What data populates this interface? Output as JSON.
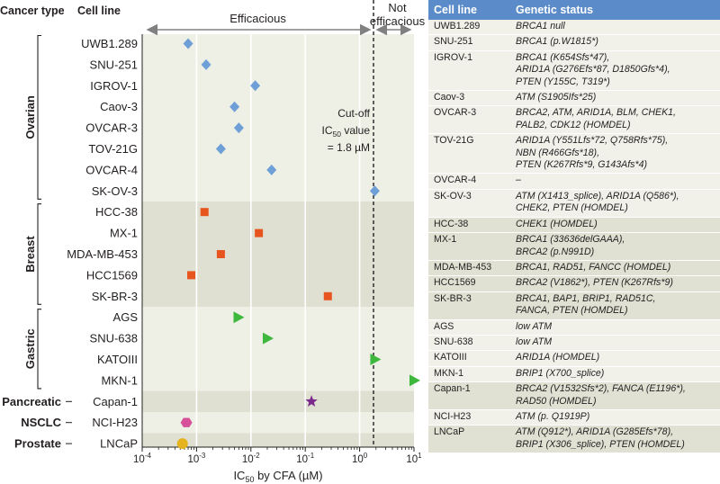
{
  "chart_data": {
    "type": "scatter",
    "x_scale": "log",
    "xlim": [
      0.0001,
      10
    ],
    "xlabel": "IC50 by CFA (µM)",
    "x_tick_labels": [
      "10^-4",
      "10^-3",
      "10^-2",
      "10^-1",
      "10^0",
      "10^1"
    ],
    "column_headers": {
      "cancer_type": "Cancer type",
      "cell_line": "Cell line"
    },
    "region_labels": {
      "efficacious": "Efficacious",
      "not_efficacious_line1": "Not",
      "not_efficacious_line2": "efficacious"
    },
    "cutoff": {
      "value": 1.8,
      "label_line1": "Cut-off",
      "label_line2": "IC50 value",
      "label_line3": "= 1.8 µM"
    },
    "groups": [
      {
        "name": "Ovarian",
        "color": "#6e9fd6",
        "marker": "diamond",
        "band": "#eef0e5",
        "points": [
          {
            "cell_line": "UWB1.289",
            "ic50": 0.0007
          },
          {
            "cell_line": "SNU-251",
            "ic50": 0.0015
          },
          {
            "cell_line": "IGROV-1",
            "ic50": 0.012
          },
          {
            "cell_line": "Caov-3",
            "ic50": 0.005
          },
          {
            "cell_line": "OVCAR-3",
            "ic50": 0.006
          },
          {
            "cell_line": "TOV-21G",
            "ic50": 0.0028
          },
          {
            "cell_line": "OVCAR-4",
            "ic50": 0.024
          },
          {
            "cell_line": "SK-OV-3",
            "ic50": 1.9
          }
        ]
      },
      {
        "name": "Breast",
        "color": "#e8541e",
        "marker": "square",
        "band": "#dfe0d2",
        "points": [
          {
            "cell_line": "HCC-38",
            "ic50": 0.0014
          },
          {
            "cell_line": "MX-1",
            "ic50": 0.014
          },
          {
            "cell_line": "MDA-MB-453",
            "ic50": 0.0028
          },
          {
            "cell_line": "HCC1569",
            "ic50": 0.0008
          },
          {
            "cell_line": "SK-BR-3",
            "ic50": 0.26
          }
        ]
      },
      {
        "name": "Gastric",
        "color": "#3db83c",
        "marker": "triangle",
        "band": "#eef0e5",
        "points": [
          {
            "cell_line": "AGS",
            "ic50": 0.0058
          },
          {
            "cell_line": "SNU-638",
            "ic50": 0.02
          },
          {
            "cell_line": "KATOIII",
            "ic50": 1.9
          },
          {
            "cell_line": "MKN-1",
            "ic50": 10
          }
        ]
      },
      {
        "name": "Pancreatic",
        "color": "#7b2a8c",
        "marker": "star",
        "band": "#dfe0d2",
        "points": [
          {
            "cell_line": "Capan-1",
            "ic50": 0.13
          }
        ]
      },
      {
        "name": "NSCLC",
        "color": "#d6509a",
        "marker": "hexagon",
        "band": "#eef0e5",
        "points": [
          {
            "cell_line": "NCI-H23",
            "ic50": 0.00065
          }
        ]
      },
      {
        "name": "Prostate",
        "color": "#e4b31d",
        "marker": "circle",
        "band": "#dfe0d2",
        "points": [
          {
            "cell_line": "LNCaP",
            "ic50": 0.00055
          }
        ]
      }
    ]
  },
  "table": {
    "headers": {
      "cell_line": "Cell line",
      "status": "Genetic status"
    },
    "rows": [
      {
        "cell_line": "UWB1.289",
        "status_lines": [
          "BRCA1 null"
        ],
        "group": "a"
      },
      {
        "cell_line": "SNU-251",
        "status_lines": [
          "BRCA1 (p.W1815*)"
        ],
        "group": "a"
      },
      {
        "cell_line": "IGROV-1",
        "status_lines": [
          "BRCA1 (K654Sfs*47),",
          "ARID1A (G276Efs*87, D1850Gfs*4),",
          "PTEN (Y155C, T319*)"
        ],
        "group": "a"
      },
      {
        "cell_line": "Caov-3",
        "status_lines": [
          "ATM (S1905Ifs*25)"
        ],
        "group": "a"
      },
      {
        "cell_line": "OVCAR-3",
        "status_lines": [
          "BRCA2, ATM, ARID1A, BLM, CHEK1,",
          "PALB2, CDK12 (HOMDEL)"
        ],
        "group": "a"
      },
      {
        "cell_line": "TOV-21G",
        "status_lines": [
          "ARID1A (Y551Lfs*72, Q758Rfs*75),",
          "NBN (R466Gfs*18),",
          "PTEN (K267Rfs*9, G143Afs*4)"
        ],
        "group": "a"
      },
      {
        "cell_line": "OVCAR-4",
        "status_lines": [
          "–"
        ],
        "group": "a"
      },
      {
        "cell_line": "SK-OV-3",
        "status_lines": [
          "ATM (X1413_splice), ARID1A (Q586*),",
          "CHEK2, PTEN (HOMDEL)"
        ],
        "group": "a"
      },
      {
        "cell_line": "HCC-38",
        "status_lines": [
          "CHEK1 (HOMDEL)"
        ],
        "group": "b"
      },
      {
        "cell_line": "MX-1",
        "status_lines": [
          "BRCA1 (33636delGAAA),",
          "BRCA2 (p.N991D)"
        ],
        "group": "b"
      },
      {
        "cell_line": "MDA-MB-453",
        "status_lines": [
          "BRCA1, RAD51, FANCC (HOMDEL)"
        ],
        "group": "b"
      },
      {
        "cell_line": "HCC1569",
        "status_lines": [
          "BRCA2 (V1862*), PTEN (K267Rfs*9)"
        ],
        "group": "b"
      },
      {
        "cell_line": "SK-BR-3",
        "status_lines": [
          "BRCA1, BAP1, BRIP1, RAD51C,",
          "FANCA, PTEN (HOMDEL)"
        ],
        "group": "b"
      },
      {
        "cell_line": "AGS",
        "status_lines": [
          "low ATM"
        ],
        "group": "a"
      },
      {
        "cell_line": "SNU-638",
        "status_lines": [
          "low ATM"
        ],
        "group": "a"
      },
      {
        "cell_line": "KATOIII",
        "status_lines": [
          "ARID1A (HOMDEL)"
        ],
        "group": "a"
      },
      {
        "cell_line": "MKN-1",
        "status_lines": [
          "BRIP1 (X700_splice)"
        ],
        "group": "a"
      },
      {
        "cell_line": "Capan-1",
        "status_lines": [
          "BRCA2 (V1532Sfs*2), FANCA (E1196*),",
          "RAD50 (HOMDEL)"
        ],
        "group": "b"
      },
      {
        "cell_line": "NCI-H23",
        "status_lines": [
          "ATM (p. Q1919P)"
        ],
        "group": "a"
      },
      {
        "cell_line": "LNCaP",
        "status_lines": [
          "ATM (Q912*), ARID1A (G285Efs*78),",
          "BRIP1 (X306_splice), PTEN (HOMDEL)"
        ],
        "group": "b"
      }
    ]
  }
}
